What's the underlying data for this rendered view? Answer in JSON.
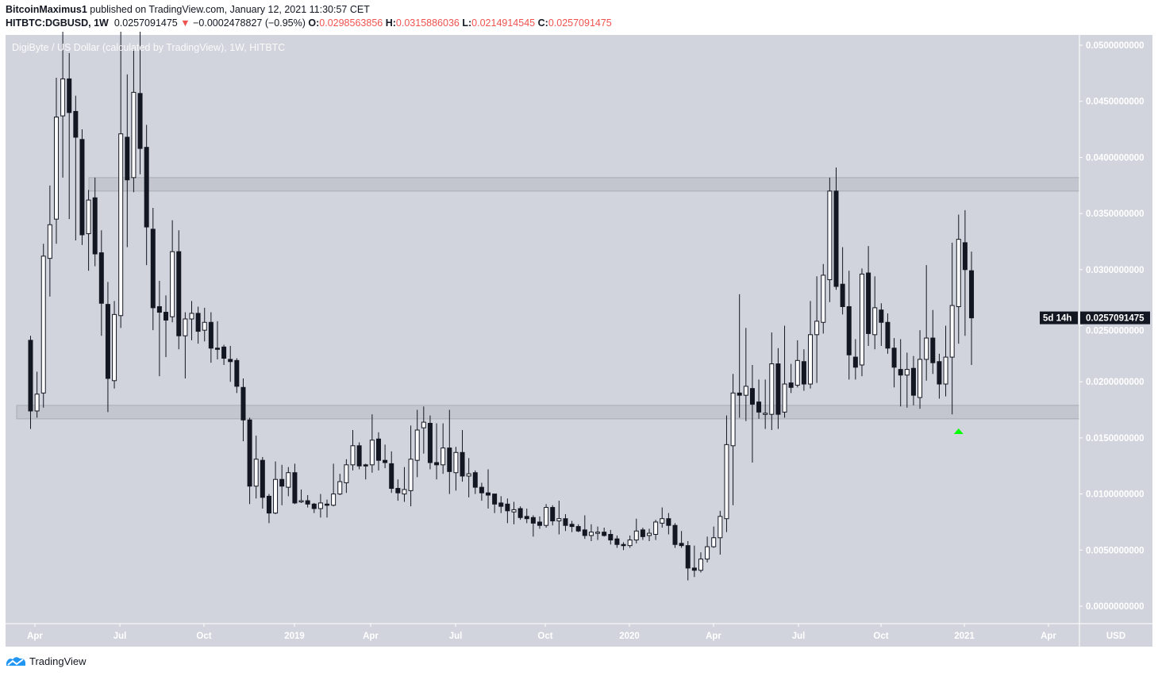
{
  "header": {
    "author": "BitcoinMaximus1",
    "published": "published on TradingView.com, January 12, 2021 11:30:57 CET",
    "symbol": "HITBTC:DGBUSD, 1W",
    "last": "0.0257091475",
    "change": "−0.0002478827 (−0.95%)",
    "change_direction_icon": "triangle-down",
    "o_label": "O:",
    "o": "0.0298563856",
    "h_label": "H:",
    "h": "0.0315886036",
    "l_label": "L:",
    "l": "0.0214914545",
    "c_label": "C:",
    "c": "0.0257091475"
  },
  "legend": "DigiByte / US Dollar (calculated by TradingView), 1W, HITBTC",
  "price_tag": {
    "value": "0.0257091475",
    "countdown": "5d 14h"
  },
  "currency": "USD",
  "footer": {
    "brand": "TradingView"
  },
  "colors": {
    "background": "#d1d4dc",
    "bear": "#131722",
    "bull": "#ffffff",
    "zone": "#c3c6ce",
    "marker": "#00ff00",
    "price_tag": "#131722",
    "header_values": "#ef5350"
  },
  "chart_data": {
    "type": "candlestick",
    "interval": "1W",
    "title": "DigiByte / US Dollar (calculated by TradingView), 1W, HITBTC",
    "ylim": [
      0,
      0.05
    ],
    "y_ticks": [
      "0.0500000000",
      "0.0450000000",
      "0.0400000000",
      "0.0350000000",
      "0.0300000000",
      "0.0250000000",
      "0.0200000000",
      "0.0150000000",
      "0.0100000000",
      "0.0050000000",
      "0.0000000000"
    ],
    "x_ticks": [
      "Apr",
      "Jul",
      "Oct",
      "2019",
      "Apr",
      "Jul",
      "Oct",
      "2020",
      "Apr",
      "Jul",
      "Oct",
      "2021",
      "Apr"
    ],
    "grid": false,
    "zones": [
      {
        "from": 0.037,
        "to": 0.0382
      },
      {
        "from": 0.0167,
        "to": 0.0179
      }
    ],
    "markers": [
      {
        "type": "arrow-up",
        "candle": 144,
        "color": "#00ff00"
      }
    ],
    "ohlc": [
      [
        0.0237,
        0.0241,
        0.0158,
        0.0174
      ],
      [
        0.0174,
        0.0209,
        0.0168,
        0.0189
      ],
      [
        0.019,
        0.0323,
        0.0177,
        0.0312
      ],
      [
        0.031,
        0.0375,
        0.0276,
        0.034
      ],
      [
        0.0345,
        0.0471,
        0.0323,
        0.0436
      ],
      [
        0.0437,
        0.052,
        0.0382,
        0.047
      ],
      [
        0.047,
        0.0493,
        0.0345,
        0.044
      ],
      [
        0.0441,
        0.0455,
        0.0326,
        0.0418
      ],
      [
        0.0416,
        0.0425,
        0.0322,
        0.0331
      ],
      [
        0.0332,
        0.0371,
        0.0299,
        0.0362
      ],
      [
        0.0364,
        0.0382,
        0.0303,
        0.0314
      ],
      [
        0.0315,
        0.0335,
        0.0241,
        0.027
      ],
      [
        0.0269,
        0.0289,
        0.0173,
        0.0203
      ],
      [
        0.0201,
        0.0272,
        0.0194,
        0.026
      ],
      [
        0.0259,
        0.052,
        0.0248,
        0.0421
      ],
      [
        0.0418,
        0.0474,
        0.032,
        0.038
      ],
      [
        0.0382,
        0.0496,
        0.0369,
        0.0458
      ],
      [
        0.0457,
        0.052,
        0.0385,
        0.0408
      ],
      [
        0.0409,
        0.0429,
        0.0304,
        0.0338
      ],
      [
        0.0336,
        0.0355,
        0.0246,
        0.0266
      ],
      [
        0.0267,
        0.029,
        0.0205,
        0.0262
      ],
      [
        0.0262,
        0.0277,
        0.0222,
        0.0255
      ],
      [
        0.0258,
        0.0344,
        0.0253,
        0.0316
      ],
      [
        0.0316,
        0.0335,
        0.0229,
        0.0241
      ],
      [
        0.0241,
        0.0262,
        0.0203,
        0.0256
      ],
      [
        0.0256,
        0.0272,
        0.0237,
        0.0261
      ],
      [
        0.0261,
        0.0267,
        0.0234,
        0.0245
      ],
      [
        0.0246,
        0.0266,
        0.0236,
        0.0253
      ],
      [
        0.0253,
        0.0262,
        0.0217,
        0.023
      ],
      [
        0.023,
        0.0254,
        0.022,
        0.0229
      ],
      [
        0.0231,
        0.0233,
        0.0215,
        0.0221
      ],
      [
        0.022,
        0.0232,
        0.02,
        0.0218
      ],
      [
        0.0219,
        0.0221,
        0.019,
        0.0196
      ],
      [
        0.0195,
        0.0203,
        0.0147,
        0.0166
      ],
      [
        0.0166,
        0.0168,
        0.0091,
        0.0107
      ],
      [
        0.0107,
        0.0152,
        0.0096,
        0.0131
      ],
      [
        0.013,
        0.0133,
        0.0087,
        0.0097
      ],
      [
        0.0098,
        0.01,
        0.0074,
        0.0083
      ],
      [
        0.0083,
        0.0129,
        0.0082,
        0.0113
      ],
      [
        0.0113,
        0.0126,
        0.009,
        0.0107
      ],
      [
        0.0106,
        0.0124,
        0.0098,
        0.0119
      ],
      [
        0.0119,
        0.0127,
        0.0091,
        0.0092
      ],
      [
        0.0093,
        0.0104,
        0.0092,
        0.0094
      ],
      [
        0.0094,
        0.0099,
        0.0088,
        0.0091
      ],
      [
        0.0091,
        0.0092,
        0.0083,
        0.0087
      ],
      [
        0.0087,
        0.01,
        0.0079,
        0.0092
      ],
      [
        0.0091,
        0.0095,
        0.0079,
        0.009
      ],
      [
        0.009,
        0.0127,
        0.0089,
        0.01
      ],
      [
        0.01,
        0.0118,
        0.0099,
        0.0111
      ],
      [
        0.011,
        0.0131,
        0.0101,
        0.0126
      ],
      [
        0.0126,
        0.0157,
        0.0121,
        0.0143
      ],
      [
        0.0143,
        0.0146,
        0.0122,
        0.0125
      ],
      [
        0.0126,
        0.0127,
        0.0113,
        0.0125
      ],
      [
        0.0126,
        0.0171,
        0.0119,
        0.0148
      ],
      [
        0.0149,
        0.0155,
        0.0121,
        0.013
      ],
      [
        0.013,
        0.0144,
        0.0123,
        0.0128
      ],
      [
        0.0127,
        0.0138,
        0.0101,
        0.0105
      ],
      [
        0.0105,
        0.0113,
        0.0094,
        0.0101
      ],
      [
        0.01,
        0.0124,
        0.0093,
        0.0104
      ],
      [
        0.0103,
        0.0161,
        0.0089,
        0.0131
      ],
      [
        0.013,
        0.0175,
        0.0115,
        0.0157
      ],
      [
        0.0159,
        0.0178,
        0.0136,
        0.0164
      ],
      [
        0.0163,
        0.017,
        0.0122,
        0.0128
      ],
      [
        0.0128,
        0.0163,
        0.0113,
        0.0126
      ],
      [
        0.0126,
        0.0163,
        0.0118,
        0.0141
      ],
      [
        0.0141,
        0.0175,
        0.01,
        0.012
      ],
      [
        0.0119,
        0.0142,
        0.0103,
        0.0137
      ],
      [
        0.0137,
        0.0157,
        0.0111,
        0.0116
      ],
      [
        0.0116,
        0.0132,
        0.0097,
        0.0118
      ],
      [
        0.0119,
        0.0121,
        0.01,
        0.0106
      ],
      [
        0.0106,
        0.011,
        0.0094,
        0.0101
      ],
      [
        0.0101,
        0.0122,
        0.0087,
        0.0099
      ],
      [
        0.01,
        0.01,
        0.0083,
        0.0091
      ],
      [
        0.0092,
        0.0098,
        0.0083,
        0.0089
      ],
      [
        0.0091,
        0.0096,
        0.0074,
        0.0085
      ],
      [
        0.0084,
        0.0093,
        0.0073,
        0.0086
      ],
      [
        0.0087,
        0.0089,
        0.0077,
        0.0079
      ],
      [
        0.008,
        0.0087,
        0.0074,
        0.0078
      ],
      [
        0.0079,
        0.0081,
        0.0062,
        0.0074
      ],
      [
        0.0075,
        0.008,
        0.0069,
        0.0072
      ],
      [
        0.0072,
        0.0091,
        0.007,
        0.0088
      ],
      [
        0.0088,
        0.009,
        0.0072,
        0.0076
      ],
      [
        0.0076,
        0.0094,
        0.0064,
        0.0078
      ],
      [
        0.0078,
        0.0082,
        0.0067,
        0.0072
      ],
      [
        0.0073,
        0.0076,
        0.0066,
        0.0071
      ],
      [
        0.0071,
        0.0073,
        0.0066,
        0.0067
      ],
      [
        0.0068,
        0.0081,
        0.006,
        0.0063
      ],
      [
        0.0063,
        0.0073,
        0.0058,
        0.0066
      ],
      [
        0.0066,
        0.0071,
        0.0059,
        0.0066
      ],
      [
        0.0066,
        0.007,
        0.0062,
        0.0063
      ],
      [
        0.0064,
        0.0068,
        0.0055,
        0.0059
      ],
      [
        0.006,
        0.0063,
        0.0052,
        0.0055
      ],
      [
        0.0055,
        0.0057,
        0.005,
        0.0054
      ],
      [
        0.0054,
        0.0063,
        0.0052,
        0.0059
      ],
      [
        0.0059,
        0.0078,
        0.0056,
        0.0067
      ],
      [
        0.0068,
        0.007,
        0.0059,
        0.0062
      ],
      [
        0.0063,
        0.0069,
        0.0058,
        0.0065
      ],
      [
        0.0064,
        0.0077,
        0.0059,
        0.0075
      ],
      [
        0.0074,
        0.0088,
        0.007,
        0.0078
      ],
      [
        0.0078,
        0.0083,
        0.0064,
        0.0072
      ],
      [
        0.0072,
        0.0074,
        0.0052,
        0.0055
      ],
      [
        0.0056,
        0.0067,
        0.0052,
        0.0054
      ],
      [
        0.0054,
        0.0058,
        0.0023,
        0.0034
      ],
      [
        0.0034,
        0.0054,
        0.0026,
        0.0032
      ],
      [
        0.0032,
        0.0048,
        0.003,
        0.0042
      ],
      [
        0.0042,
        0.0062,
        0.0039,
        0.0053
      ],
      [
        0.0053,
        0.0071,
        0.0052,
        0.0061
      ],
      [
        0.0061,
        0.0085,
        0.0046,
        0.008
      ],
      [
        0.0078,
        0.017,
        0.0066,
        0.0144
      ],
      [
        0.0143,
        0.0207,
        0.009,
        0.019
      ],
      [
        0.019,
        0.0278,
        0.0168,
        0.0188
      ],
      [
        0.0188,
        0.0248,
        0.0165,
        0.0196
      ],
      [
        0.0194,
        0.0215,
        0.0128,
        0.018
      ],
      [
        0.0182,
        0.0202,
        0.0167,
        0.0173
      ],
      [
        0.0171,
        0.0202,
        0.0158,
        0.0172
      ],
      [
        0.0171,
        0.0244,
        0.0157,
        0.0216
      ],
      [
        0.0216,
        0.023,
        0.0158,
        0.0171
      ],
      [
        0.0173,
        0.025,
        0.0168,
        0.0198
      ],
      [
        0.0199,
        0.0216,
        0.019,
        0.0195
      ],
      [
        0.0197,
        0.0237,
        0.0195,
        0.0219
      ],
      [
        0.0218,
        0.0229,
        0.0192,
        0.0198
      ],
      [
        0.0198,
        0.0272,
        0.0194,
        0.0242
      ],
      [
        0.0242,
        0.0294,
        0.0199,
        0.0254
      ],
      [
        0.0253,
        0.0305,
        0.0243,
        0.0295
      ],
      [
        0.0291,
        0.0382,
        0.0271,
        0.037
      ],
      [
        0.037,
        0.0391,
        0.0282,
        0.0285
      ],
      [
        0.0287,
        0.032,
        0.026,
        0.0267
      ],
      [
        0.0267,
        0.0299,
        0.0202,
        0.0224
      ],
      [
        0.0222,
        0.0238,
        0.0202,
        0.0213
      ],
      [
        0.0215,
        0.0301,
        0.0205,
        0.0296
      ],
      [
        0.0297,
        0.0321,
        0.0232,
        0.0243
      ],
      [
        0.0242,
        0.0294,
        0.0229,
        0.0266
      ],
      [
        0.0264,
        0.027,
        0.0232,
        0.0253
      ],
      [
        0.0253,
        0.0261,
        0.0225,
        0.023
      ],
      [
        0.023,
        0.0239,
        0.0195,
        0.0213
      ],
      [
        0.0211,
        0.0238,
        0.0178,
        0.0206
      ],
      [
        0.0206,
        0.0226,
        0.0177,
        0.0211
      ],
      [
        0.0212,
        0.0223,
        0.0179,
        0.0188
      ],
      [
        0.0186,
        0.0246,
        0.0176,
        0.022
      ],
      [
        0.022,
        0.0304,
        0.0201,
        0.0239
      ],
      [
        0.0239,
        0.0264,
        0.0207,
        0.0217
      ],
      [
        0.0218,
        0.0225,
        0.0185,
        0.0198
      ],
      [
        0.0198,
        0.025,
        0.0187,
        0.0222
      ],
      [
        0.0222,
        0.0324,
        0.0171,
        0.0268
      ],
      [
        0.0267,
        0.0349,
        0.0234,
        0.0327
      ],
      [
        0.0324,
        0.0353,
        0.0241,
        0.03
      ],
      [
        0.0299,
        0.0316,
        0.0215,
        0.0257
      ]
    ]
  }
}
